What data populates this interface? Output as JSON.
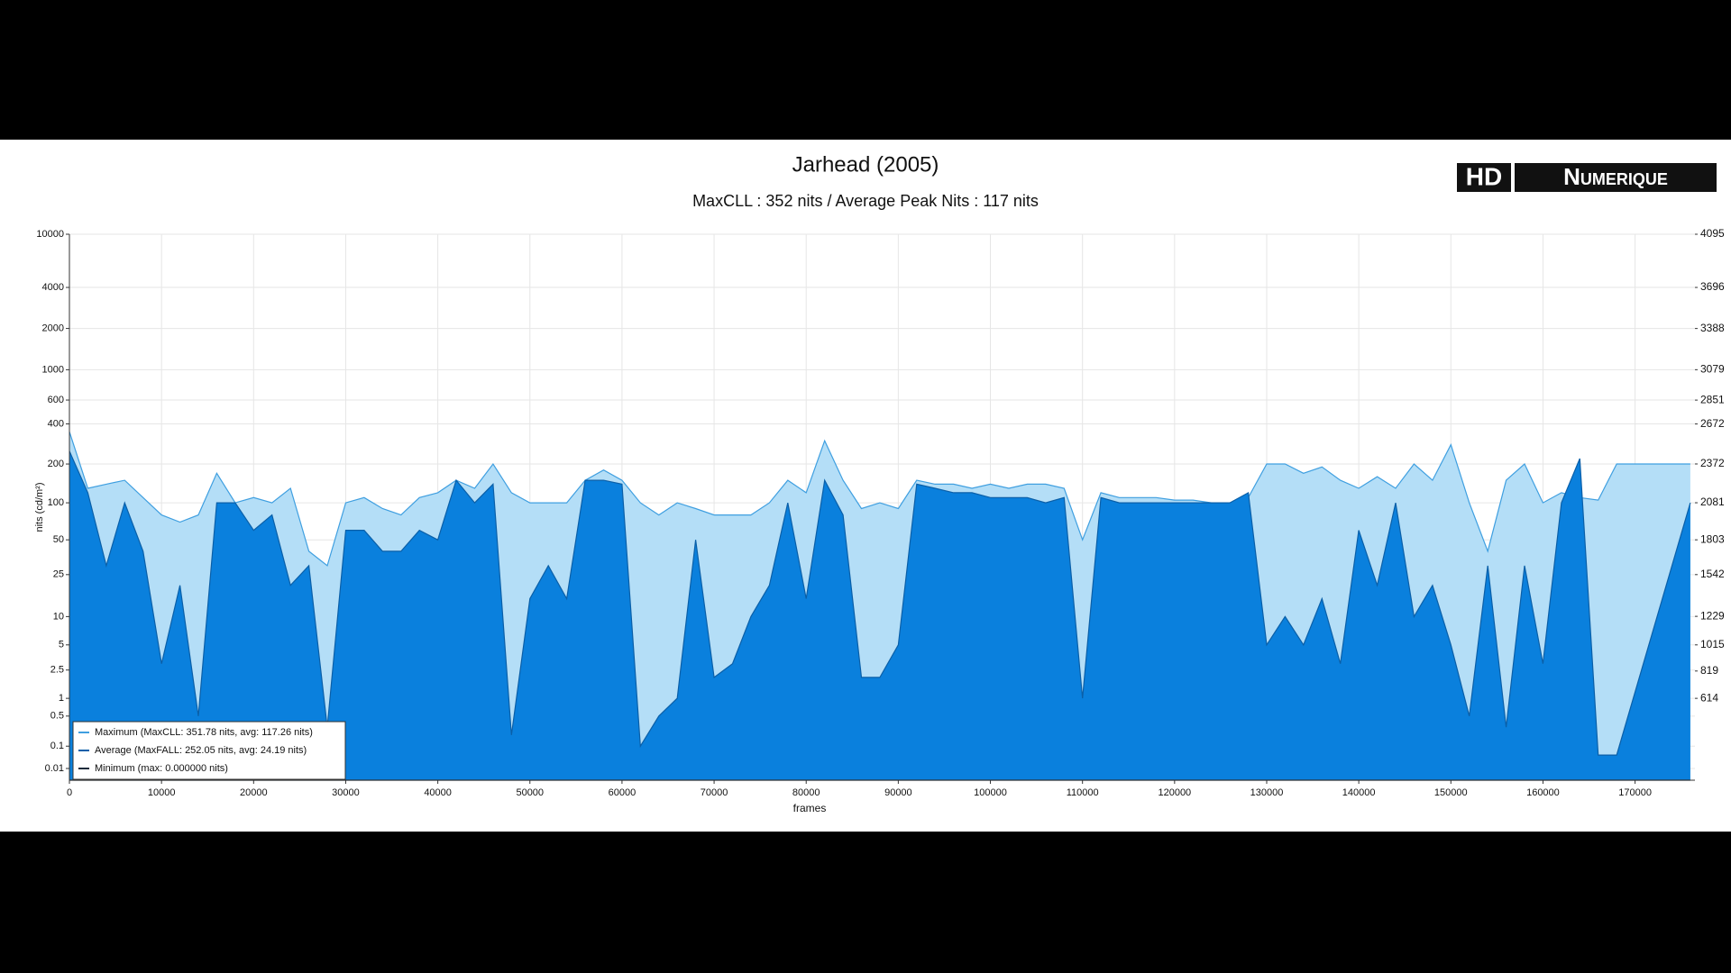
{
  "chart_data": {
    "type": "area",
    "title": "Jarhead (2005)",
    "subtitle": "MaxCLL : 352 nits / Average Peak Nits : 117 nits",
    "logo": {
      "left": "HD",
      "right": "Numerique"
    },
    "x_label": "frames",
    "y_label": "nits (cd/m²)",
    "y_scale": "pq",
    "grid": true,
    "legend_position": "lower left",
    "xlim": [
      0,
      176500
    ],
    "xticks": [
      0,
      10000,
      20000,
      30000,
      40000,
      50000,
      60000,
      70000,
      80000,
      90000,
      100000,
      110000,
      120000,
      130000,
      140000,
      150000,
      160000,
      170000
    ],
    "ylim": [
      0,
      10000
    ],
    "yticks": [
      10000,
      4000,
      2000,
      1000,
      600,
      400,
      200,
      100,
      50,
      25,
      10,
      5,
      2.5,
      1,
      0.5,
      0.1,
      0.01
    ],
    "y2lim": [
      0,
      4095
    ],
    "y2ticks": [
      4095,
      3696,
      3388,
      3079,
      2851,
      2672,
      2372,
      2081,
      1803,
      1542,
      1229,
      1015,
      819,
      614
    ],
    "x": [
      0,
      2000,
      4000,
      6000,
      8000,
      10000,
      12000,
      14000,
      16000,
      18000,
      20000,
      22000,
      24000,
      26000,
      28000,
      30000,
      32000,
      34000,
      36000,
      38000,
      40000,
      42000,
      44000,
      46000,
      48000,
      50000,
      52000,
      54000,
      56000,
      58000,
      60000,
      62000,
      64000,
      66000,
      68000,
      70000,
      72000,
      74000,
      76000,
      78000,
      80000,
      82000,
      84000,
      86000,
      88000,
      90000,
      92000,
      94000,
      96000,
      98000,
      100000,
      102000,
      104000,
      106000,
      108000,
      110000,
      112000,
      114000,
      116000,
      118000,
      120000,
      122000,
      124000,
      126000,
      128000,
      130000,
      132000,
      134000,
      136000,
      138000,
      140000,
      142000,
      144000,
      146000,
      148000,
      150000,
      152000,
      154000,
      156000,
      158000,
      160000,
      162000,
      164000,
      166000,
      168000,
      176000
    ],
    "series": [
      {
        "name": "Maximum (MaxCLL: 351.78 nits, avg: 117.26 nits)",
        "color": "#b4def7",
        "stroke": "#3f9fe0",
        "values": [
          350,
          130,
          140,
          150,
          110,
          80,
          70,
          80,
          170,
          100,
          110,
          100,
          130,
          40,
          30,
          100,
          110,
          90,
          80,
          110,
          120,
          150,
          130,
          200,
          120,
          100,
          100,
          100,
          150,
          180,
          150,
          100,
          80,
          100,
          90,
          80,
          80,
          80,
          100,
          150,
          120,
          300,
          150,
          90,
          100,
          90,
          150,
          140,
          140,
          130,
          140,
          130,
          140,
          140,
          130,
          50,
          120,
          110,
          110,
          110,
          105,
          105,
          100,
          100,
          110,
          200,
          200,
          170,
          190,
          150,
          130,
          160,
          130,
          200,
          150,
          280,
          100,
          40,
          150,
          200,
          100,
          120,
          110,
          105,
          200,
          200
        ]
      },
      {
        "name": "Average (MaxFALL: 252.05 nits, avg: 24.19 nits)",
        "color": "#0a80dd",
        "stroke": "#0a5fa8",
        "values": [
          250,
          120,
          30,
          100,
          40,
          3,
          20,
          0.5,
          100,
          100,
          60,
          80,
          20,
          30,
          0.3,
          60,
          60,
          40,
          40,
          60,
          50,
          150,
          100,
          140,
          0.2,
          15,
          30,
          15,
          150,
          150,
          140,
          0.1,
          0.5,
          1,
          50,
          2,
          3,
          10,
          20,
          100,
          15,
          150,
          80,
          2,
          2,
          5,
          140,
          130,
          120,
          120,
          110,
          110,
          110,
          100,
          110,
          1,
          110,
          100,
          100,
          100,
          100,
          100,
          100,
          100,
          120,
          5,
          10,
          5,
          15,
          3,
          60,
          20,
          100,
          10,
          20,
          5,
          0.5,
          30,
          0.3,
          30,
          3,
          100,
          220,
          0.05,
          0.05,
          100
        ]
      },
      {
        "name": "Minimum (max: 0.000000 nits)",
        "color": "#1a2a3a",
        "stroke": "#1a2a3a",
        "values": [
          0,
          0,
          0,
          0,
          0,
          0,
          0,
          0,
          0,
          0,
          0,
          0,
          0,
          0,
          0,
          0,
          0,
          0,
          0,
          0,
          0,
          0,
          0,
          0,
          0,
          0,
          0,
          0,
          0,
          0,
          0,
          0,
          0,
          0,
          0,
          0,
          0,
          0,
          0,
          0,
          0,
          0,
          0,
          0,
          0,
          0,
          0,
          0,
          0,
          0,
          0,
          0,
          0,
          0,
          0,
          0,
          0,
          0,
          0,
          0,
          0,
          0,
          0,
          0,
          0,
          0,
          0,
          0,
          0,
          0,
          0,
          0,
          0,
          0,
          0,
          0,
          0,
          0,
          0,
          0,
          0,
          0,
          0,
          0,
          0,
          0
        ]
      }
    ]
  }
}
